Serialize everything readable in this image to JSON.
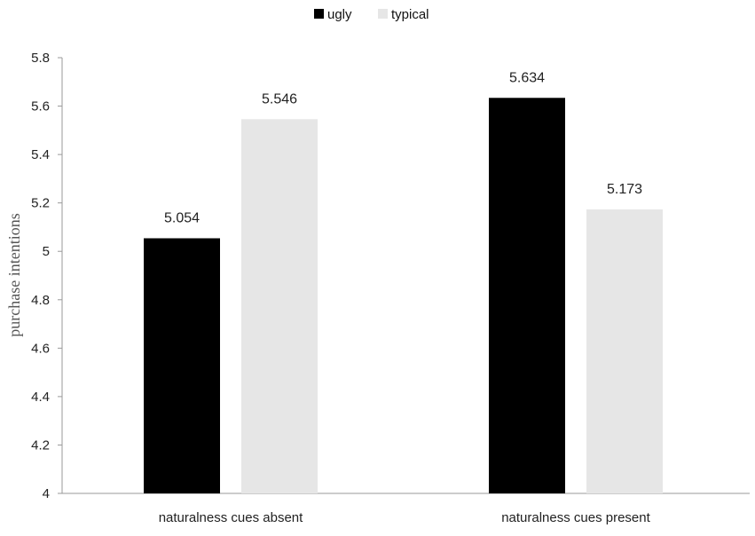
{
  "chart_data": {
    "type": "bar",
    "categories": [
      "naturalness cues absent",
      "naturalness cues present"
    ],
    "series": [
      {
        "name": "ugly",
        "values": [
          5.054,
          5.634
        ],
        "color": "#000000"
      },
      {
        "name": "typical",
        "values": [
          5.546,
          5.173
        ],
        "color": "#e6e6e6"
      }
    ],
    "data_labels": [
      [
        "5.054",
        "5.634"
      ],
      [
        "5.546",
        "5.173"
      ]
    ],
    "ylabel": "purchase intentions",
    "ylim": [
      4,
      5.8
    ],
    "yticks": [
      "4",
      "4.2",
      "4.4",
      "4.6",
      "4.8",
      "5",
      "5.2",
      "5.4",
      "5.6",
      "5.8"
    ],
    "ytick_values": [
      4,
      4.2,
      4.4,
      4.6,
      4.8,
      5,
      5.2,
      5.4,
      5.6,
      5.8
    ],
    "legend_position": "top-center",
    "grid": false
  }
}
